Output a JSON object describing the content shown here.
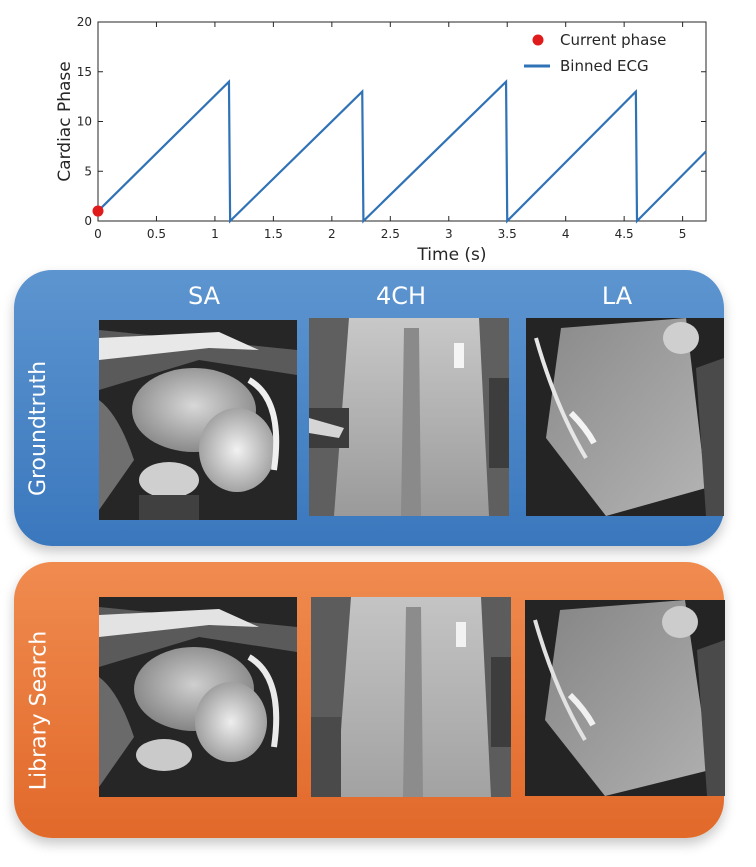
{
  "chart_data": {
    "type": "line",
    "xlabel": "Time (s)",
    "ylabel": "Cardiac Phase",
    "xlim": [
      0,
      5.2
    ],
    "ylim": [
      0,
      20
    ],
    "xticks": [
      "0",
      "0.5",
      "1",
      "1.5",
      "2",
      "2.5",
      "3",
      "3.5",
      "4",
      "4.5",
      "5"
    ],
    "yticks": [
      "0",
      "5",
      "10",
      "15",
      "20"
    ],
    "grid": false,
    "legend_position": "top-right",
    "series": [
      {
        "name": "Binned ECG",
        "type": "line",
        "color": "#2f72b6",
        "x": [
          0.0,
          1.12,
          1.13,
          2.26,
          2.27,
          3.49,
          3.5,
          4.6,
          4.61,
          5.2
        ],
        "y": [
          1.0,
          14.0,
          0.0,
          13.0,
          0.0,
          14.0,
          0.0,
          13.0,
          0.0,
          7.0
        ]
      },
      {
        "name": "Current phase",
        "type": "scatter",
        "color": "#e01b1b",
        "x": [
          0.0
        ],
        "y": [
          1.0
        ]
      }
    ]
  },
  "panels": {
    "groundtruth": {
      "label": "Groundtruth",
      "color": "#4a86c7"
    },
    "library": {
      "label": "Library Search",
      "color": "#e87a3d"
    }
  },
  "columns": [
    "SA",
    "4CH",
    "LA"
  ]
}
